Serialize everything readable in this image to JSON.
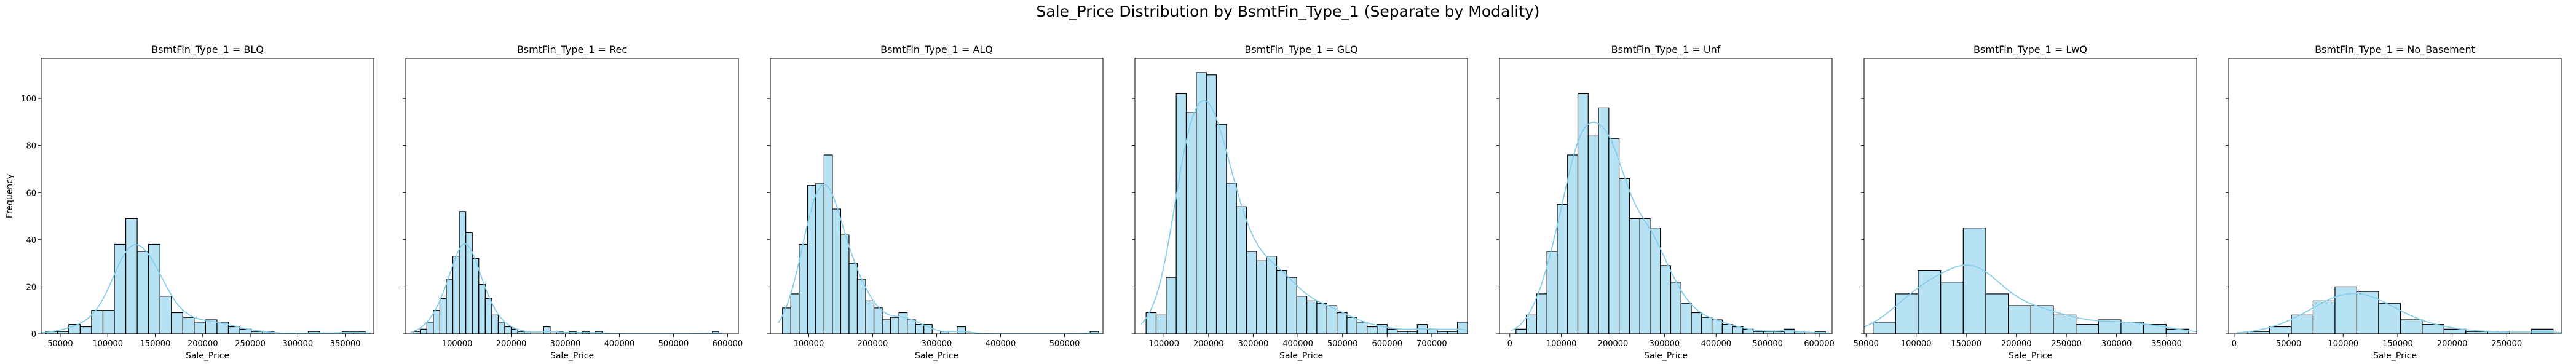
{
  "chart_data": {
    "type": "histogram",
    "title": "Sale_Price Distribution by BsmtFin_Type_1 (Separate by Modality)",
    "ylabel": "Frequency",
    "xlabel": "Sale_Price",
    "ylim": [
      0,
      117
    ],
    "yticks": [
      0,
      20,
      40,
      60,
      80,
      100
    ],
    "shared_y": true,
    "bar_color": "#87ceeb",
    "bar_edge_color": "#000000",
    "kde_color": "#87ceeb",
    "panels": [
      {
        "title": "BsmtFin_Type_1 = BLQ",
        "xlim": [
          30000,
          380000
        ],
        "xticks": [
          50000,
          100000,
          150000,
          200000,
          250000,
          300000,
          350000
        ],
        "bin_start": 35000,
        "bin_width": 12000,
        "counts": [
          1,
          1,
          4,
          3,
          10,
          10,
          38,
          49,
          35,
          38,
          16,
          9,
          7,
          5,
          6,
          5,
          3,
          2,
          1,
          1,
          0,
          0,
          0,
          1,
          0,
          0,
          1,
          1
        ]
      },
      {
        "title": "BsmtFin_Type_1 = Rec",
        "xlim": [
          5000,
          620000
        ],
        "xticks": [
          100000,
          200000,
          300000,
          400000,
          500000,
          600000
        ],
        "bin_start": 20000,
        "bin_width": 12000,
        "counts": [
          1,
          2,
          5,
          10,
          15,
          23,
          33,
          52,
          43,
          32,
          21,
          15,
          8,
          5,
          3,
          2,
          1,
          1,
          0,
          0,
          3,
          0,
          1,
          0,
          1,
          0,
          1,
          0,
          1,
          0,
          0,
          0,
          0,
          0,
          0,
          0,
          0,
          0,
          0,
          0,
          0,
          0,
          0,
          0,
          0,
          0,
          1
        ]
      },
      {
        "title": "BsmtFin_Type_1 = ALQ",
        "xlim": [
          40000,
          560000
        ],
        "xticks": [
          100000,
          200000,
          300000,
          400000,
          500000
        ],
        "bin_start": 59000,
        "bin_width": 13000,
        "counts": [
          11,
          17,
          38,
          63,
          64,
          76,
          53,
          42,
          30,
          23,
          14,
          11,
          6,
          7,
          9,
          6,
          4,
          4,
          0,
          1,
          0,
          3,
          0,
          0,
          0,
          0,
          0,
          0,
          0,
          0,
          0,
          0,
          0,
          0,
          0,
          0,
          0,
          1
        ]
      },
      {
        "title": "BsmtFin_Type_1 = GLQ",
        "xlim": [
          35000,
          780000
        ],
        "xticks": [
          100000,
          200000,
          300000,
          400000,
          500000,
          600000,
          700000
        ],
        "bin_start": 60000,
        "bin_width": 22500,
        "counts": [
          9,
          8,
          24,
          102,
          94,
          111,
          110,
          89,
          64,
          54,
          35,
          31,
          33,
          27,
          24,
          16,
          14,
          13,
          12,
          9,
          7,
          5,
          3,
          4,
          2,
          1,
          1,
          4,
          2,
          1,
          1,
          5
        ]
      },
      {
        "title": "BsmtFin_Type_1 = Unf",
        "xlim": [
          -20000,
          625000
        ],
        "xticks": [
          0,
          100000,
          200000,
          300000,
          400000,
          500000,
          600000
        ],
        "bin_start": 12000,
        "bin_width": 20000,
        "counts": [
          2,
          8,
          17,
          35,
          55,
          76,
          102,
          84,
          96,
          83,
          66,
          49,
          49,
          45,
          29,
          22,
          13,
          9,
          7,
          6,
          4,
          3,
          2,
          1,
          1,
          1,
          2,
          1,
          0,
          1
        ]
      },
      {
        "title": "BsmtFin_Type_1 = LwQ",
        "xlim": [
          48000,
          380000
        ],
        "xticks": [
          50000,
          100000,
          150000,
          200000,
          250000,
          300000,
          350000
        ],
        "bin_start": 57000,
        "bin_width": 22500,
        "counts": [
          5,
          17,
          27,
          22,
          45,
          17,
          12,
          12,
          8,
          4,
          6,
          5,
          4,
          2
        ]
      },
      {
        "title": "BsmtFin_Type_1 = No_Basement",
        "xlim": [
          -5000,
          300000
        ],
        "xticks": [
          0,
          50000,
          100000,
          150000,
          200000,
          250000
        ],
        "bin_start": 12500,
        "bin_width": 20000,
        "counts": [
          1,
          3,
          8,
          14,
          20,
          18,
          13,
          6,
          4,
          2,
          1,
          1,
          0,
          2
        ]
      }
    ]
  }
}
